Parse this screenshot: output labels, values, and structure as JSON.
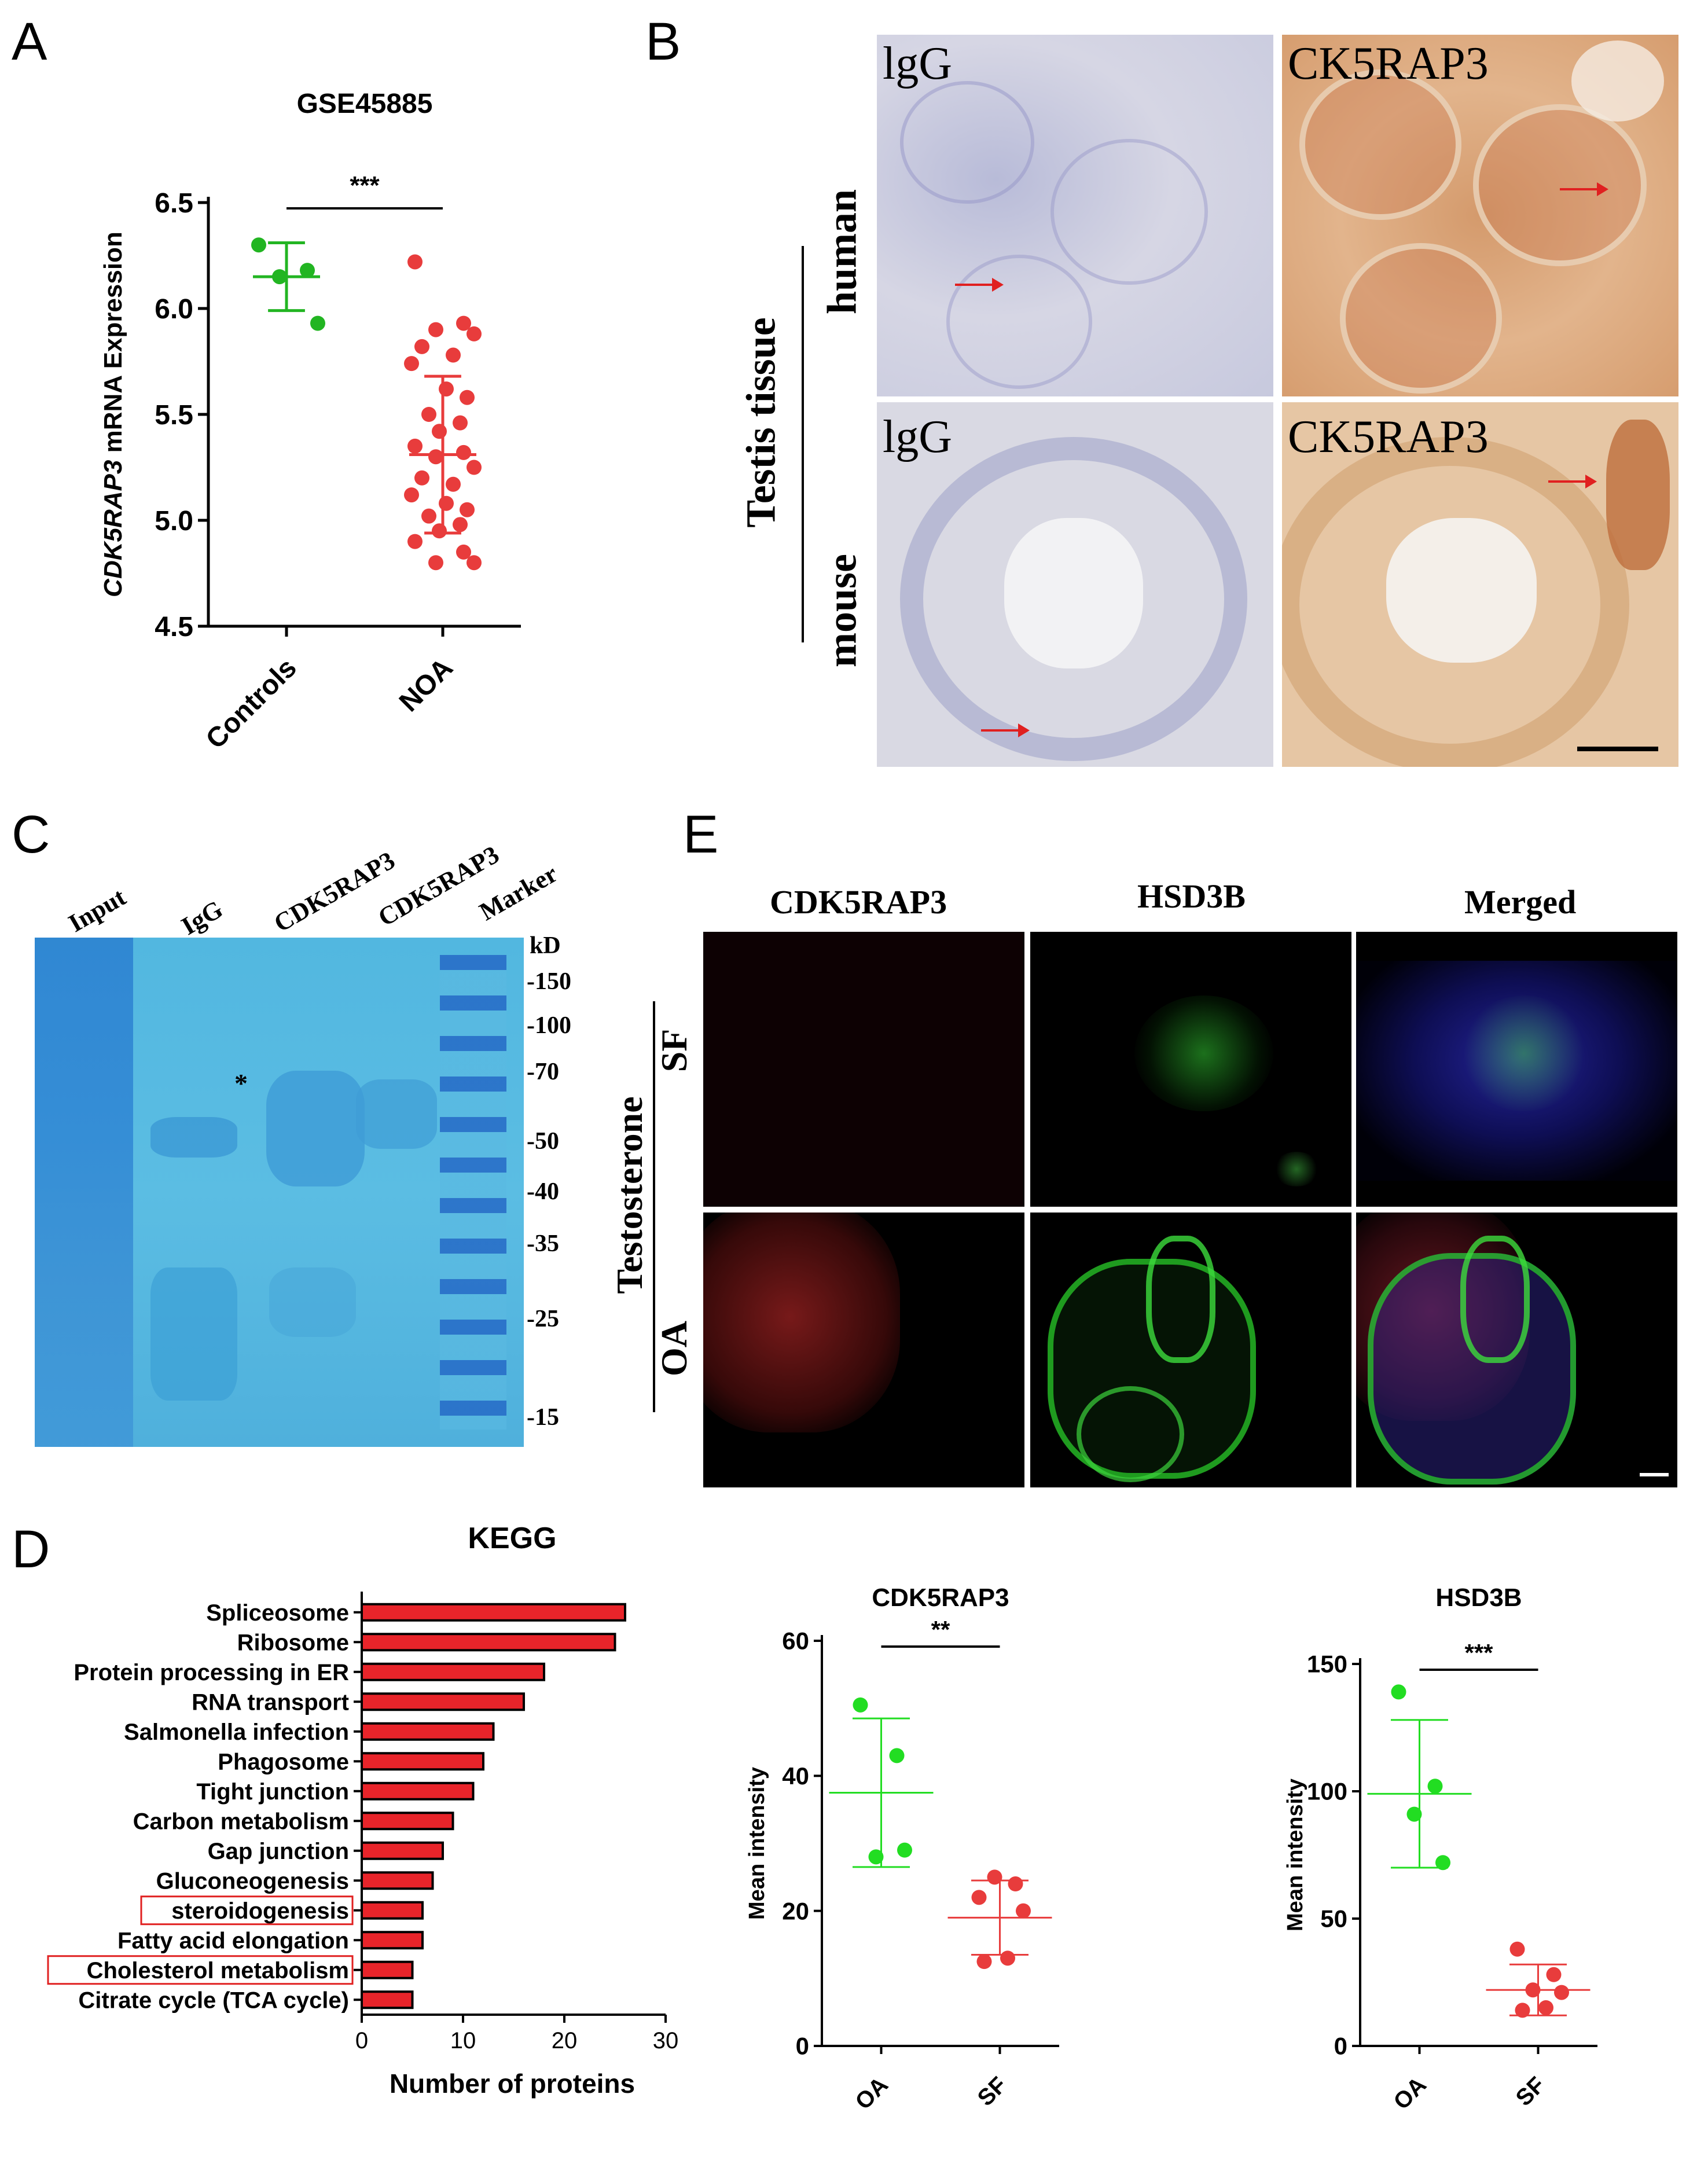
{
  "panels": {
    "A": "A",
    "B": "B",
    "C": "C",
    "D": "D",
    "E": "E"
  },
  "panelA": {
    "title": "GSE45885",
    "ylabel_italic": "CDK5RAP3",
    "ylabel_rest": " mRNA Expression",
    "significance": "***",
    "chart_data": {
      "type": "scatter",
      "title": "GSE45885",
      "ylabel": "CDK5RAP3 mRNA Expression",
      "categories": [
        "Controls",
        "NOA"
      ],
      "ylim": [
        4.5,
        6.5
      ],
      "yticks": [
        4.5,
        5.0,
        5.5,
        6.0,
        6.5
      ],
      "series": [
        {
          "name": "Controls",
          "color": "#22b522",
          "mean": 6.15,
          "sd": 0.16,
          "values": [
            6.3,
            6.18,
            6.15,
            5.93
          ]
        },
        {
          "name": "NOA",
          "color": "#e83c3c",
          "mean": 5.31,
          "sd": 0.37,
          "values": [
            6.22,
            5.93,
            5.9,
            5.88,
            5.82,
            5.78,
            5.74,
            5.62,
            5.58,
            5.5,
            5.46,
            5.42,
            5.35,
            5.32,
            5.3,
            5.25,
            5.2,
            5.17,
            5.12,
            5.08,
            5.05,
            5.02,
            4.98,
            4.95,
            4.9,
            4.85,
            4.8,
            4.8
          ]
        }
      ]
    }
  },
  "panelB": {
    "side_label": "Testis tissue",
    "row_labels": [
      "human",
      "mouse"
    ],
    "image_labels": [
      "lgG",
      "CK5RAP3",
      "lgG",
      "CK5RAP3"
    ]
  },
  "panelC": {
    "lane_labels": [
      "Input",
      "IgG",
      "CDK5RAP3",
      "CDK5RAP3",
      "Marker"
    ],
    "unit": "kD",
    "marker_sizes": [
      "-150",
      "-100",
      "-70",
      "-50",
      "-40",
      "-35",
      "-25",
      "-15"
    ],
    "star": "*"
  },
  "panelD": {
    "title": "KEGG",
    "xlabel": "Number of proteins",
    "chart_data": {
      "type": "bar",
      "orientation": "horizontal",
      "title": "KEGG",
      "xlabel": "Number of proteins",
      "xlim": [
        0,
        30
      ],
      "xticks": [
        0,
        10,
        20,
        30
      ],
      "categories": [
        "Spliceosome",
        "Ribosome",
        "Protein processing in ER",
        "RNA transport",
        "Salmonella infection",
        "Phagosome",
        "Tight junction",
        "Carbon metabolism",
        "Gap junction",
        "Gluconeogenesis",
        "steroidogenesis",
        "Fatty acid elongation",
        "Cholesterol metabolism",
        "Citrate cycle (TCA cycle)"
      ],
      "values": [
        26,
        25,
        18,
        16,
        13,
        12,
        11,
        9,
        8,
        7,
        6,
        6,
        5,
        5
      ],
      "highlighted": [
        "steroidogenesis",
        "Cholesterol metabolism"
      ],
      "bar_color": "#e8242a"
    }
  },
  "panelE": {
    "col_labels": [
      "CDK5RAP3",
      "HSD3B",
      "Merged"
    ],
    "side_label": "Testosterone",
    "row_labels": [
      "SF",
      "OA"
    ]
  },
  "charts_E": {
    "ylabel": "Mean intensity",
    "chart_data": [
      {
        "type": "scatter",
        "title": "CDK5RAP3",
        "ylabel": "Mean intensity",
        "categories": [
          "OA",
          "SF"
        ],
        "ylim": [
          0,
          60
        ],
        "yticks": [
          0,
          20,
          40,
          60
        ],
        "significance": "**",
        "series": [
          {
            "name": "OA",
            "color": "#22dd22",
            "mean": 37.5,
            "sd": 11,
            "values": [
              50.5,
              43,
              28,
              29
            ]
          },
          {
            "name": "SF",
            "color": "#e83c3c",
            "mean": 19,
            "sd": 5.5,
            "values": [
              22,
              24,
              25,
              20,
              12.5,
              13
            ]
          }
        ]
      },
      {
        "type": "scatter",
        "title": "HSD3B",
        "ylabel": "Mean intensity",
        "categories": [
          "OA",
          "SF"
        ],
        "ylim": [
          0,
          150
        ],
        "yticks": [
          0,
          50,
          100,
          150
        ],
        "significance": "***",
        "series": [
          {
            "name": "OA",
            "color": "#22dd22",
            "mean": 99,
            "sd": 29,
            "values": [
              139,
              102,
              91,
              72
            ]
          },
          {
            "name": "SF",
            "color": "#e83c3c",
            "mean": 22,
            "sd": 10,
            "values": [
              38,
              28,
              22,
              21,
              14,
              15
            ]
          }
        ]
      }
    ]
  }
}
